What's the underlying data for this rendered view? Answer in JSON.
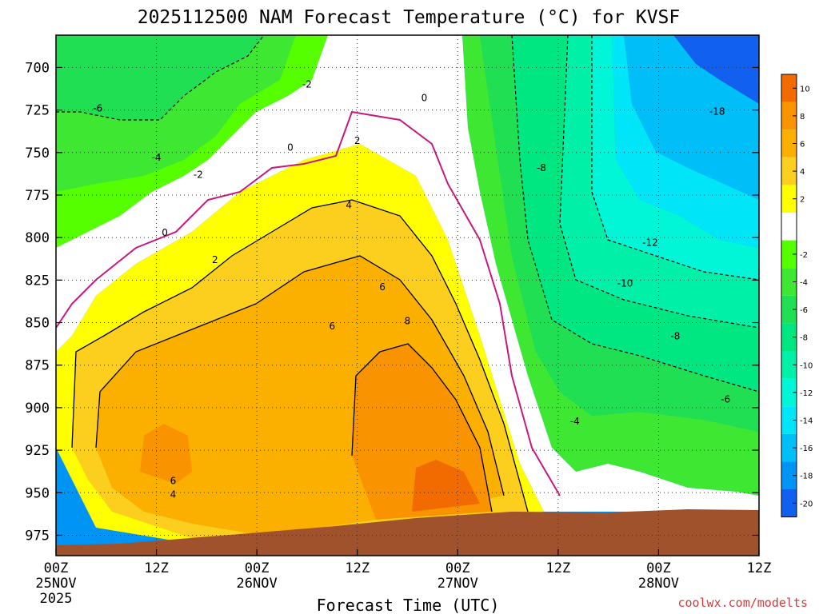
{
  "chart_data": {
    "type": "heatmap",
    "title": "2025112500 NAM Forecast Temperature (°C) for KVSF",
    "xlabel": "Forecast Time (UTC)",
    "ylabel": "",
    "credit": "coolwx.com/modelts",
    "x_ticks": [
      {
        "value": 0,
        "labels": [
          "00Z",
          "25NOV",
          "2025"
        ]
      },
      {
        "value": 12,
        "labels": [
          "12Z"
        ]
      },
      {
        "value": 24,
        "labels": [
          "00Z",
          "26NOV"
        ]
      },
      {
        "value": 36,
        "labels": [
          "12Z"
        ]
      },
      {
        "value": 48,
        "labels": [
          "00Z",
          "27NOV"
        ]
      },
      {
        "value": 60,
        "labels": [
          "12Z"
        ]
      },
      {
        "value": 72,
        "labels": [
          "00Z",
          "28NOV"
        ]
      },
      {
        "value": 84,
        "labels": [
          "12Z"
        ]
      }
    ],
    "xlim": [
      0,
      84
    ],
    "y_ticks": [
      {
        "value": 700,
        "label": "700"
      },
      {
        "value": 725,
        "label": "725"
      },
      {
        "value": 750,
        "label": "750"
      },
      {
        "value": 775,
        "label": "775"
      },
      {
        "value": 800,
        "label": "800"
      },
      {
        "value": 825,
        "label": "825"
      },
      {
        "value": 850,
        "label": "850"
      },
      {
        "value": 875,
        "label": "875"
      },
      {
        "value": 900,
        "label": "900"
      },
      {
        "value": 925,
        "label": "925"
      },
      {
        "value": 950,
        "label": "950"
      },
      {
        "value": 975,
        "label": "975"
      }
    ],
    "ylim": [
      681,
      987
    ],
    "grid": true,
    "colorbar": [
      {
        "label": "10",
        "color": "#f26b00"
      },
      {
        "label": "8",
        "color": "#f99300"
      },
      {
        "label": "6",
        "color": "#fbb000"
      },
      {
        "label": "4",
        "color": "#fcce1e"
      },
      {
        "label": "2",
        "color": "#ffff00"
      },
      {
        "label": "",
        "color": "#ffffff"
      },
      {
        "label": "-2",
        "color": "#55ff00"
      },
      {
        "label": "-4",
        "color": "#3ee832"
      },
      {
        "label": "-6",
        "color": "#20df52"
      },
      {
        "label": "-8",
        "color": "#00e680"
      },
      {
        "label": "-10",
        "color": "#00f0a8"
      },
      {
        "label": "-12",
        "color": "#00f6d6"
      },
      {
        "label": "-14",
        "color": "#00e6f8"
      },
      {
        "label": "-16",
        "color": "#00bef8"
      },
      {
        "label": "-18",
        "color": "#0094f4"
      },
      {
        "label": "-20",
        "color": "#1260f0"
      }
    ],
    "terrain_color": "#a0522d",
    "contour_labels": [
      {
        "text": "-6",
        "x": 5,
        "y": 724
      },
      {
        "text": "-4",
        "x": 12,
        "y": 753
      },
      {
        "text": "-2",
        "x": 17,
        "y": 763
      },
      {
        "text": "-2",
        "x": 30,
        "y": 710
      },
      {
        "text": "0",
        "x": 13,
        "y": 797
      },
      {
        "text": "0",
        "x": 28,
        "y": 747
      },
      {
        "text": "0",
        "x": 44,
        "y": 718
      },
      {
        "text": "2",
        "x": 19,
        "y": 813
      },
      {
        "text": "2",
        "x": 36,
        "y": 743
      },
      {
        "text": "4",
        "x": 35,
        "y": 781
      },
      {
        "text": "4",
        "x": 14,
        "y": 951
      },
      {
        "text": "6",
        "x": 14,
        "y": 943
      },
      {
        "text": "6",
        "x": 39,
        "y": 829
      },
      {
        "text": "6",
        "x": 33,
        "y": 852
      },
      {
        "text": "8",
        "x": 42,
        "y": 849
      },
      {
        "text": "-8",
        "x": 58,
        "y": 759
      },
      {
        "text": "-18",
        "x": 79,
        "y": 726
      },
      {
        "text": "-12",
        "x": 71,
        "y": 803
      },
      {
        "text": "-10",
        "x": 68,
        "y": 827
      },
      {
        "text": "-8",
        "x": 74,
        "y": 858
      },
      {
        "text": "-6",
        "x": 80,
        "y": 895
      },
      {
        "text": "-4",
        "x": 62,
        "y": 908
      }
    ]
  }
}
